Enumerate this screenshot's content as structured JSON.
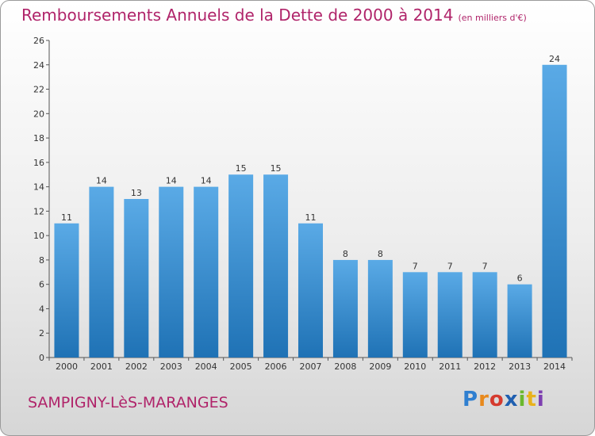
{
  "header": {
    "title": "Remboursements Annuels de la Dette de 2000 à 2014",
    "unit": "(en milliers d'€)"
  },
  "footer": {
    "city": "SAMPIGNY-LèS-MARANGES",
    "logo_text": "Proxiti"
  },
  "colors": {
    "title": "#b0246a",
    "bar_light": "#5aaae6",
    "bar_dark": "#1f72b5"
  },
  "chart_data": {
    "type": "bar",
    "title": "Remboursements Annuels de la Dette de 2000 à 2014",
    "ylabel": "en milliers d'€",
    "xlabel": "",
    "categories": [
      "2000",
      "2001",
      "2002",
      "2003",
      "2004",
      "2005",
      "2006",
      "2007",
      "2008",
      "2009",
      "2010",
      "2011",
      "2012",
      "2013",
      "2014"
    ],
    "values": [
      11,
      14,
      13,
      14,
      14,
      15,
      15,
      11,
      8,
      8,
      7,
      7,
      7,
      6,
      24
    ],
    "ylim": [
      0,
      26
    ],
    "yticks": [
      0,
      2,
      4,
      6,
      8,
      10,
      12,
      14,
      16,
      18,
      20,
      22,
      24,
      26
    ],
    "grid": false
  }
}
